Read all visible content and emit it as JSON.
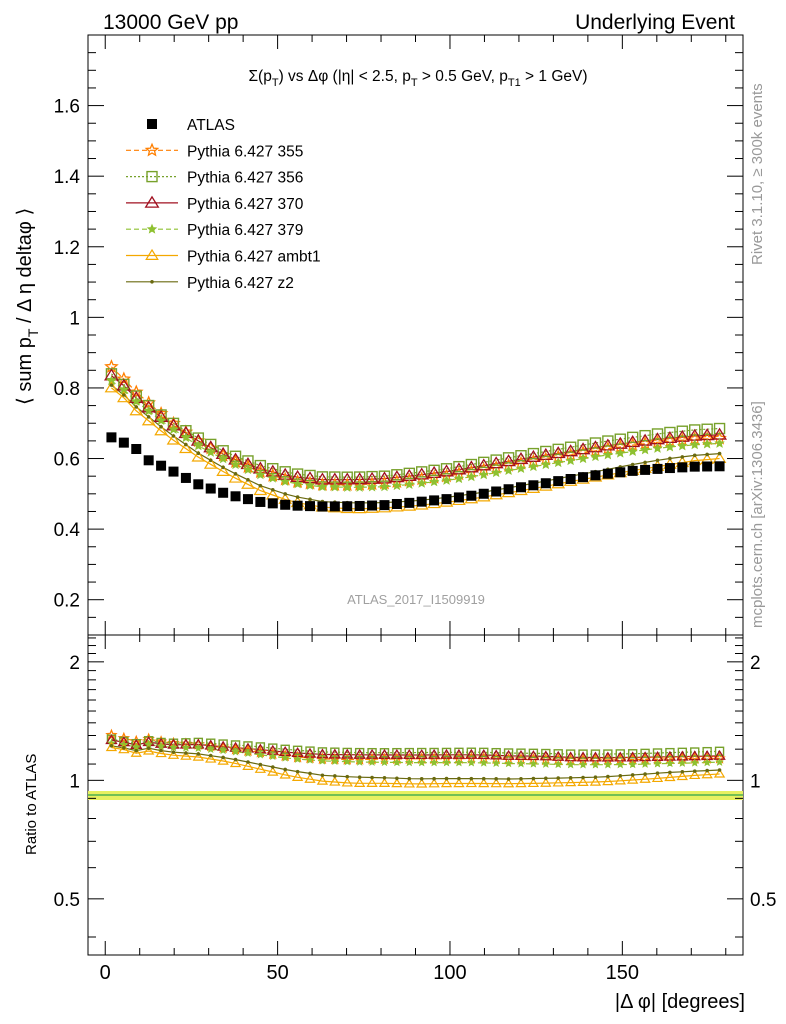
{
  "header": {
    "left": "13000 GeV pp",
    "right": "Underlying Event"
  },
  "side_labels": {
    "rivet": "Rivet 3.1.10, ≥ 300k events",
    "mcplots": "mcplots.cern.ch [arXiv:1306.3436]"
  },
  "watermark": "ATLAS_2017_I1509919",
  "colors": {
    "atlas": "#000000",
    "p355": "#ff7f00",
    "p356": "#77a12b",
    "p370": "#a01020",
    "p379": "#8ec131",
    "ambt1": "#f4a800",
    "z2": "#6a6a10",
    "band": "#e8f060",
    "band_line": "#4caf50"
  },
  "chart_data": [
    {
      "type": "scatter",
      "panel": "main",
      "title": "Σ(p_T) vs Δφ (|η| < 2.5, p_T > 0.5 GeV, p_T1 > 1 GeV)",
      "title_parts": {
        "t1": "Σ(p",
        "t1sub": "T",
        "t2": ") vs Δφ (|η| < 2.5, p",
        "t2sub": "T",
        "t3": " > 0.5 GeV, p",
        "t3sub": "T1",
        "t4": " > 1 GeV)"
      },
      "ylabel": "⟨ sum p_T / Δ η deltaφ ⟩",
      "ylabel_parts": {
        "a": "⟨ sum p",
        "sub": "T",
        "b": " / Δ η deltaφ ⟩"
      },
      "xlim": [
        -5,
        185
      ],
      "ylim": [
        0.1,
        1.8
      ],
      "yticks": [
        "0.2",
        "0.4",
        "0.6",
        "0.8",
        "1",
        "1.2",
        "1.4",
        "1.6"
      ],
      "legend_position": "top-left",
      "series": [
        {
          "name": "ATLAS",
          "marker": "square",
          "anchors": [
            [
              1.8,
              0.66
            ],
            [
              5.4,
              0.645
            ],
            [
              9,
              0.627
            ],
            [
              12.6,
              0.595
            ],
            [
              18,
              0.572
            ],
            [
              27,
              0.527
            ],
            [
              36,
              0.497
            ],
            [
              45,
              0.477
            ],
            [
              54,
              0.467
            ],
            [
              63,
              0.464
            ],
            [
              72,
              0.465
            ],
            [
              81,
              0.468
            ],
            [
              90,
              0.476
            ],
            [
              99,
              0.485
            ],
            [
              108,
              0.497
            ],
            [
              117,
              0.513
            ],
            [
              126,
              0.527
            ],
            [
              135,
              0.542
            ],
            [
              144,
              0.555
            ],
            [
              153,
              0.565
            ],
            [
              162,
              0.572
            ],
            [
              171,
              0.577
            ],
            [
              178.2,
              0.578
            ]
          ]
        },
        {
          "name": "Pythia 6.427 355",
          "marker": "star",
          "anchors": [
            [
              1.8,
              0.86
            ],
            [
              5.4,
              0.825
            ],
            [
              9,
              0.788
            ],
            [
              18,
              0.712
            ],
            [
              27,
              0.65
            ],
            [
              36,
              0.598
            ],
            [
              45,
              0.562
            ],
            [
              54,
              0.536
            ],
            [
              63,
              0.526
            ],
            [
              72,
              0.525
            ],
            [
              81,
              0.53
            ],
            [
              90,
              0.54
            ],
            [
              99,
              0.55
            ],
            [
              108,
              0.565
            ],
            [
              117,
              0.58
            ],
            [
              126,
              0.595
            ],
            [
              135,
              0.61
            ],
            [
              144,
              0.625
            ],
            [
              153,
              0.638
            ],
            [
              162,
              0.648
            ],
            [
              171,
              0.655
            ],
            [
              178.2,
              0.657
            ]
          ]
        },
        {
          "name": "Pythia 6.427 356",
          "marker": "open-square",
          "anchors": [
            [
              1.8,
              0.84
            ],
            [
              5.4,
              0.81
            ],
            [
              9,
              0.777
            ],
            [
              18,
              0.71
            ],
            [
              27,
              0.658
            ],
            [
              36,
              0.613
            ],
            [
              45,
              0.58
            ],
            [
              54,
              0.558
            ],
            [
              63,
              0.548
            ],
            [
              72,
              0.547
            ],
            [
              81,
              0.55
            ],
            [
              90,
              0.56
            ],
            [
              99,
              0.571
            ],
            [
              108,
              0.586
            ],
            [
              117,
              0.602
            ],
            [
              126,
              0.617
            ],
            [
              135,
              0.632
            ],
            [
              144,
              0.647
            ],
            [
              153,
              0.66
            ],
            [
              162,
              0.672
            ],
            [
              171,
              0.681
            ],
            [
              178.2,
              0.685
            ]
          ]
        },
        {
          "name": "Pythia 6.427 370",
          "marker": "open-triangle",
          "anchors": [
            [
              1.8,
              0.835
            ],
            [
              5.4,
              0.806
            ],
            [
              9,
              0.771
            ],
            [
              18,
              0.704
            ],
            [
              27,
              0.65
            ],
            [
              36,
              0.603
            ],
            [
              45,
              0.571
            ],
            [
              54,
              0.549
            ],
            [
              63,
              0.54
            ],
            [
              72,
              0.54
            ],
            [
              81,
              0.543
            ],
            [
              90,
              0.552
            ],
            [
              99,
              0.563
            ],
            [
              108,
              0.577
            ],
            [
              117,
              0.592
            ],
            [
              126,
              0.607
            ],
            [
              135,
              0.62
            ],
            [
              144,
              0.634
            ],
            [
              153,
              0.646
            ],
            [
              162,
              0.656
            ],
            [
              171,
              0.664
            ],
            [
              178.2,
              0.667
            ]
          ]
        },
        {
          "name": "Pythia 6.427 379",
          "marker": "small-star",
          "anchors": [
            [
              1.8,
              0.82
            ],
            [
              5.4,
              0.795
            ],
            [
              9,
              0.762
            ],
            [
              18,
              0.694
            ],
            [
              27,
              0.636
            ],
            [
              36,
              0.59
            ],
            [
              45,
              0.554
            ],
            [
              54,
              0.53
            ],
            [
              63,
              0.52
            ],
            [
              72,
              0.518
            ],
            [
              81,
              0.52
            ],
            [
              90,
              0.528
            ],
            [
              99,
              0.538
            ],
            [
              108,
              0.551
            ],
            [
              117,
              0.566
            ],
            [
              126,
              0.58
            ],
            [
              135,
              0.594
            ],
            [
              144,
              0.608
            ],
            [
              153,
              0.62
            ],
            [
              162,
              0.631
            ],
            [
              171,
              0.639
            ],
            [
              178.2,
              0.643
            ]
          ]
        },
        {
          "name": "Pythia 6.427 ambt1",
          "marker": "open-triangle",
          "anchors": [
            [
              1.8,
              0.8
            ],
            [
              5.4,
              0.772
            ],
            [
              9,
              0.735
            ],
            [
              18,
              0.664
            ],
            [
              27,
              0.604
            ],
            [
              36,
              0.553
            ],
            [
              45,
              0.509
            ],
            [
              54,
              0.478
            ],
            [
              63,
              0.462
            ],
            [
              72,
              0.457
            ],
            [
              81,
              0.46
            ],
            [
              90,
              0.466
            ],
            [
              99,
              0.476
            ],
            [
              108,
              0.488
            ],
            [
              117,
              0.503
            ],
            [
              126,
              0.518
            ],
            [
              135,
              0.535
            ],
            [
              144,
              0.55
            ],
            [
              153,
              0.566
            ],
            [
              162,
              0.58
            ],
            [
              171,
              0.594
            ],
            [
              178.2,
              0.6
            ]
          ]
        },
        {
          "name": "Pythia 6.427 z2",
          "marker": "dot",
          "anchors": [
            [
              1.8,
              0.808
            ],
            [
              5.4,
              0.78
            ],
            [
              9,
              0.746
            ],
            [
              18,
              0.676
            ],
            [
              27,
              0.615
            ],
            [
              36,
              0.565
            ],
            [
              45,
              0.523
            ],
            [
              54,
              0.494
            ],
            [
              63,
              0.478
            ],
            [
              72,
              0.474
            ],
            [
              81,
              0.475
            ],
            [
              90,
              0.48
            ],
            [
              99,
              0.49
            ],
            [
              108,
              0.502
            ],
            [
              117,
              0.517
            ],
            [
              126,
              0.533
            ],
            [
              135,
              0.55
            ],
            [
              144,
              0.566
            ],
            [
              153,
              0.583
            ],
            [
              162,
              0.598
            ],
            [
              171,
              0.609
            ],
            [
              178.2,
              0.614
            ]
          ]
        }
      ]
    },
    {
      "type": "scatter",
      "panel": "ratio",
      "ylabel": "Ratio to ATLAS",
      "xlabel": "|Δ φ| [degrees]",
      "xlim": [
        -5,
        185
      ],
      "ylim": [
        0.36,
        2.34
      ],
      "yticks": [
        "0.5",
        "1",
        "2"
      ],
      "xticks": [
        "0",
        "50",
        "100",
        "150"
      ],
      "note": "series values = model / ATLAS, computed from main panel series"
    }
  ]
}
